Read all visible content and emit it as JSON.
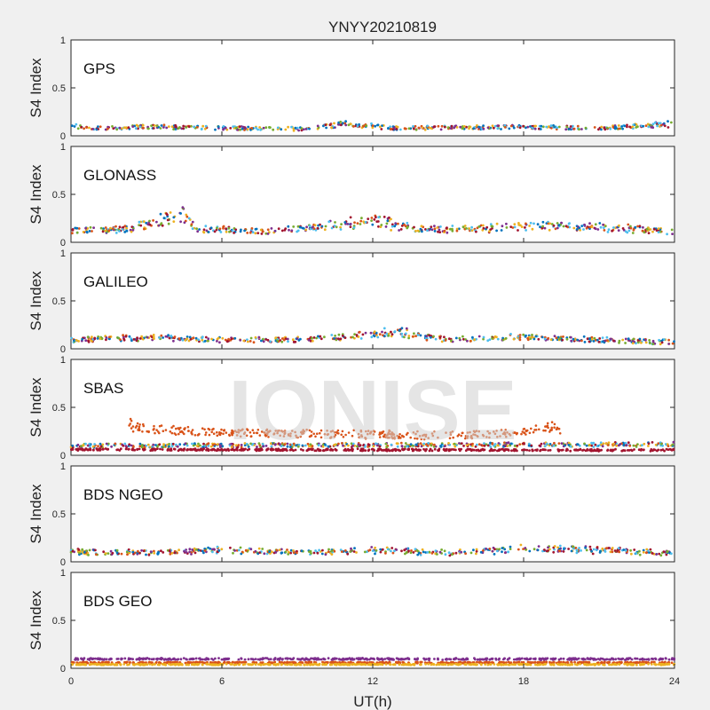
{
  "chart_data": {
    "type": "scatter",
    "title": "YNYY20210819",
    "xlabel": "UT(h)",
    "ylabel": "S4 Index",
    "xlim": [
      0,
      24
    ],
    "ylim": [
      0,
      1
    ],
    "x_ticks": [
      "0",
      "6",
      "12",
      "18",
      "24"
    ],
    "y_ticks": [
      "0",
      "0.5",
      "1"
    ],
    "watermark": "IONISE",
    "series_colors": [
      "#0072BD",
      "#D95319",
      "#EDB120",
      "#7E2F8E",
      "#77AC30",
      "#4DBEEE",
      "#A2142F"
    ],
    "panels": [
      {
        "label": "GPS",
        "series": [
          {
            "base": 0.08,
            "noise": 0.02,
            "points": [
              [
                0,
                0.12
              ],
              [
                1,
                0.08
              ],
              [
                3,
                0.1
              ],
              [
                6,
                0.08
              ],
              [
                9,
                0.07
              ],
              [
                11,
                0.14
              ],
              [
                13,
                0.08
              ],
              [
                16,
                0.09
              ],
              [
                18,
                0.1
              ],
              [
                21,
                0.08
              ],
              [
                24,
                0.14
              ]
            ]
          }
        ]
      },
      {
        "label": "GLONASS",
        "series": [
          {
            "base": 0.1,
            "noise": 0.03,
            "points": [
              [
                0,
                0.13
              ],
              [
                2,
                0.14
              ],
              [
                4.5,
                0.36
              ],
              [
                5,
                0.15
              ],
              [
                8,
                0.12
              ],
              [
                9.8,
                0.18
              ],
              [
                12,
                0.28
              ],
              [
                14,
                0.14
              ],
              [
                19.5,
                0.2
              ],
              [
                20.5,
                0.18
              ],
              [
                22.5,
                0.16
              ],
              [
                24,
                0.1
              ]
            ]
          }
        ]
      },
      {
        "label": "GALILEO",
        "series": [
          {
            "base": 0.08,
            "noise": 0.025,
            "points": [
              [
                0,
                0.1
              ],
              [
                3,
                0.13
              ],
              [
                6,
                0.1
              ],
              [
                9,
                0.1
              ],
              [
                11,
                0.14
              ],
              [
                13,
                0.22
              ],
              [
                15,
                0.1
              ],
              [
                18,
                0.14
              ],
              [
                21,
                0.1
              ],
              [
                24,
                0.06
              ]
            ]
          }
        ]
      },
      {
        "label": "SBAS",
        "series": [
          {
            "base": 0.1,
            "noise": 0.02,
            "points": [
              [
                0,
                0.1
              ],
              [
                24,
                0.12
              ]
            ]
          },
          {
            "base": 0.23,
            "noise": 0.04,
            "points": [
              [
                2.3,
                0.4
              ],
              [
                2.6,
                0.3
              ],
              [
                3.5,
                0.28
              ],
              [
                6,
                0.24
              ],
              [
                10,
                0.22
              ],
              [
                14,
                0.2
              ],
              [
                17,
                0.22
              ],
              [
                18.5,
                0.28
              ],
              [
                19.3,
                0.33
              ],
              [
                19.5,
                0.22
              ]
            ]
          },
          {
            "base": 0.06,
            "noise": 0.01,
            "points": [
              [
                0,
                0.06
              ],
              [
                24,
                0.05
              ]
            ]
          }
        ]
      },
      {
        "label": "BDS NGEO",
        "series": [
          {
            "base": 0.08,
            "noise": 0.025,
            "points": [
              [
                0,
                0.12
              ],
              [
                3,
                0.1
              ],
              [
                6,
                0.14
              ],
              [
                9,
                0.1
              ],
              [
                12,
                0.14
              ],
              [
                15,
                0.1
              ],
              [
                18,
                0.16
              ],
              [
                21,
                0.14
              ],
              [
                24,
                0.1
              ]
            ]
          }
        ]
      },
      {
        "label": "BDS GEO",
        "series": [
          {
            "base": 0.09,
            "noise": 0.008,
            "points": [
              [
                0,
                0.1
              ],
              [
                24,
                0.1
              ]
            ]
          },
          {
            "base": 0.06,
            "noise": 0.006,
            "points": [
              [
                0,
                0.06
              ],
              [
                24,
                0.06
              ]
            ]
          },
          {
            "base": 0.04,
            "noise": 0.005,
            "points": [
              [
                0,
                0.04
              ],
              [
                24,
                0.04
              ]
            ]
          }
        ]
      }
    ]
  }
}
